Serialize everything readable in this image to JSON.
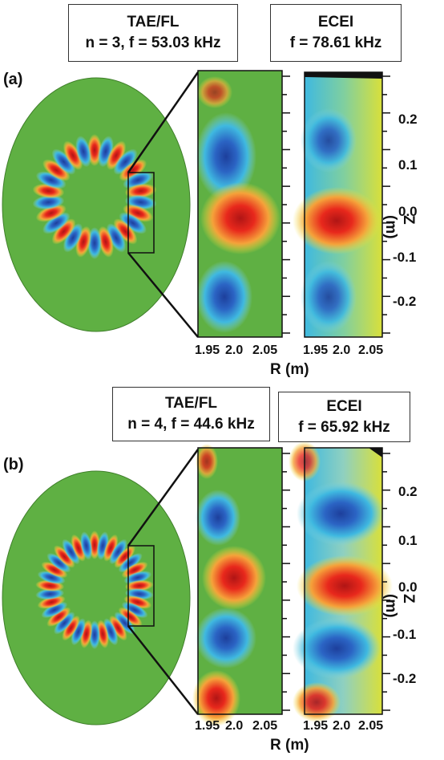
{
  "panels": [
    {
      "label": "(a)",
      "sim_box": {
        "title": "TAE/FL",
        "params": "n = 3, f = 53.03 kHz"
      },
      "exp_box": {
        "title": "ECEI",
        "params": "f = 78.61 kHz"
      },
      "z_ticks": [
        "0.2",
        "0.1",
        "0.0",
        "-0.1",
        "-0.2"
      ],
      "r_ticks": [
        "1.95",
        "2.0",
        "2.05"
      ],
      "r_axis_label": "R (m)",
      "z_axis_label": "Z (m)"
    },
    {
      "label": "(b)",
      "sim_box": {
        "title": "TAE/FL",
        "params": "n = 4, f = 44.6 kHz"
      },
      "exp_box": {
        "title": "ECEI",
        "params": "f = 65.92 kHz"
      },
      "z_ticks": [
        "0.2",
        "0.1",
        "0.0",
        "-0.1",
        "-0.2"
      ],
      "r_ticks": [
        "1.95",
        "2.0",
        "2.05"
      ],
      "r_axis_label": "R (m)",
      "z_axis_label": "Z (m)"
    }
  ],
  "colors": {
    "background_green": "#5fb043",
    "positive": "#e8281c",
    "negative": "#2b64c4",
    "yellow": "#f2e23a",
    "cyan": "#3fb9e0"
  }
}
